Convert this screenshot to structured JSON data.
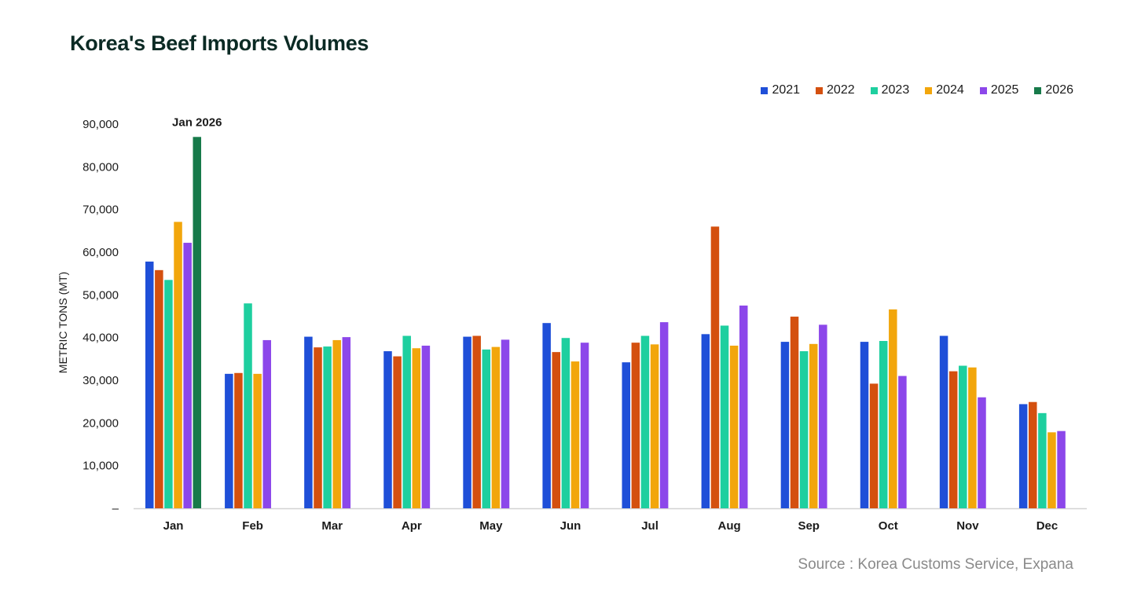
{
  "chart_data": {
    "type": "bar",
    "title": "Korea's Beef Imports Volumes",
    "xlabel": "",
    "ylabel": "METRIC TONS (MT)",
    "ylim": [
      0,
      90000
    ],
    "yticks": [
      "–",
      "10,000",
      "20,000",
      "30,000",
      "40,000",
      "50,000",
      "60,000",
      "70,000",
      "80,000",
      "90,000"
    ],
    "grid": false,
    "legend_position": "top-right",
    "categories": [
      "Jan",
      "Feb",
      "Mar",
      "Apr",
      "May",
      "Jun",
      "Jul",
      "Aug",
      "Sep",
      "Oct",
      "Nov",
      "Dec"
    ],
    "series": [
      {
        "name": "2021",
        "color": "#1f4fd8",
        "values": [
          57800,
          31500,
          40200,
          36800,
          40200,
          43400,
          34200,
          40800,
          39000,
          39000,
          40400,
          24400
        ]
      },
      {
        "name": "2022",
        "color": "#d4500f",
        "values": [
          55800,
          31700,
          37700,
          35600,
          40400,
          36600,
          38800,
          66000,
          44900,
          29200,
          32100,
          24900
        ]
      },
      {
        "name": "2023",
        "color": "#1ecf9f",
        "values": [
          53500,
          48000,
          37900,
          40400,
          37200,
          39900,
          40400,
          42800,
          36800,
          39200,
          33400,
          22300
        ]
      },
      {
        "name": "2024",
        "color": "#f2a60c",
        "values": [
          67100,
          31500,
          39400,
          37500,
          37800,
          34400,
          38400,
          38100,
          38500,
          46600,
          33000,
          17800
        ]
      },
      {
        "name": "2025",
        "color": "#8c47ea",
        "values": [
          62200,
          39400,
          40100,
          38100,
          39500,
          38800,
          43600,
          47500,
          43000,
          31000,
          26000,
          18100
        ]
      },
      {
        "name": "2026",
        "color": "#177a4a",
        "values": [
          87000,
          null,
          null,
          null,
          null,
          null,
          null,
          null,
          null,
          null,
          null,
          null
        ]
      }
    ],
    "annotations": [
      {
        "text": "Jan 2026",
        "category": "Jan",
        "series": "2026"
      }
    ]
  },
  "source": "Source : Korea Customs Service, Expana"
}
